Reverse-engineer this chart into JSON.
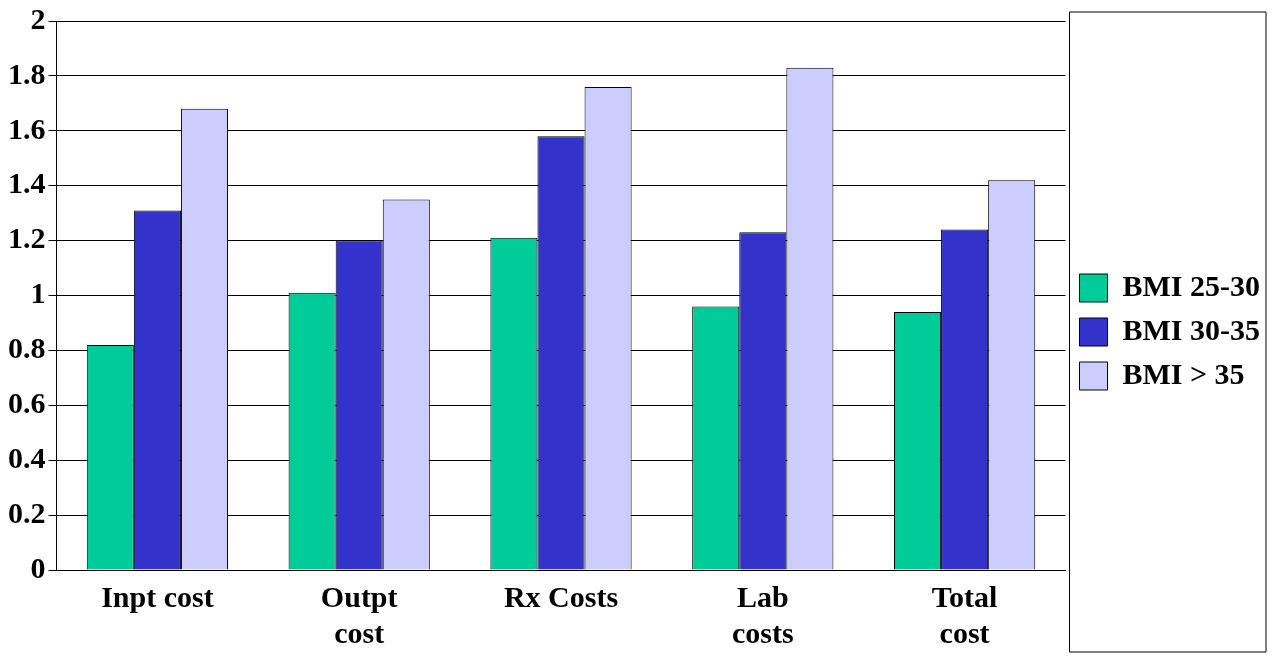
{
  "chart_data": {
    "type": "bar",
    "categories": [
      "Inpt cost",
      "Outpt\ncost",
      "Rx Costs",
      "Lab\ncosts",
      "Total\ncost"
    ],
    "series": [
      {
        "name": "BMI 25-30",
        "color": "#00cc99",
        "values": [
          0.82,
          1.01,
          1.21,
          0.96,
          0.94
        ]
      },
      {
        "name": "BMI 30-35",
        "color": "#3333cc",
        "values": [
          1.31,
          1.2,
          1.58,
          1.23,
          1.24
        ]
      },
      {
        "name": "BMI > 35",
        "color": "#ccccff",
        "values": [
          1.68,
          1.35,
          1.76,
          1.83,
          1.42
        ]
      }
    ],
    "ylim": [
      0,
      2
    ],
    "yticks": [
      0,
      0.2,
      0.4,
      0.6,
      0.8,
      1,
      1.2,
      1.4,
      1.6,
      1.8,
      2
    ],
    "grid": "y",
    "legend": "right"
  }
}
